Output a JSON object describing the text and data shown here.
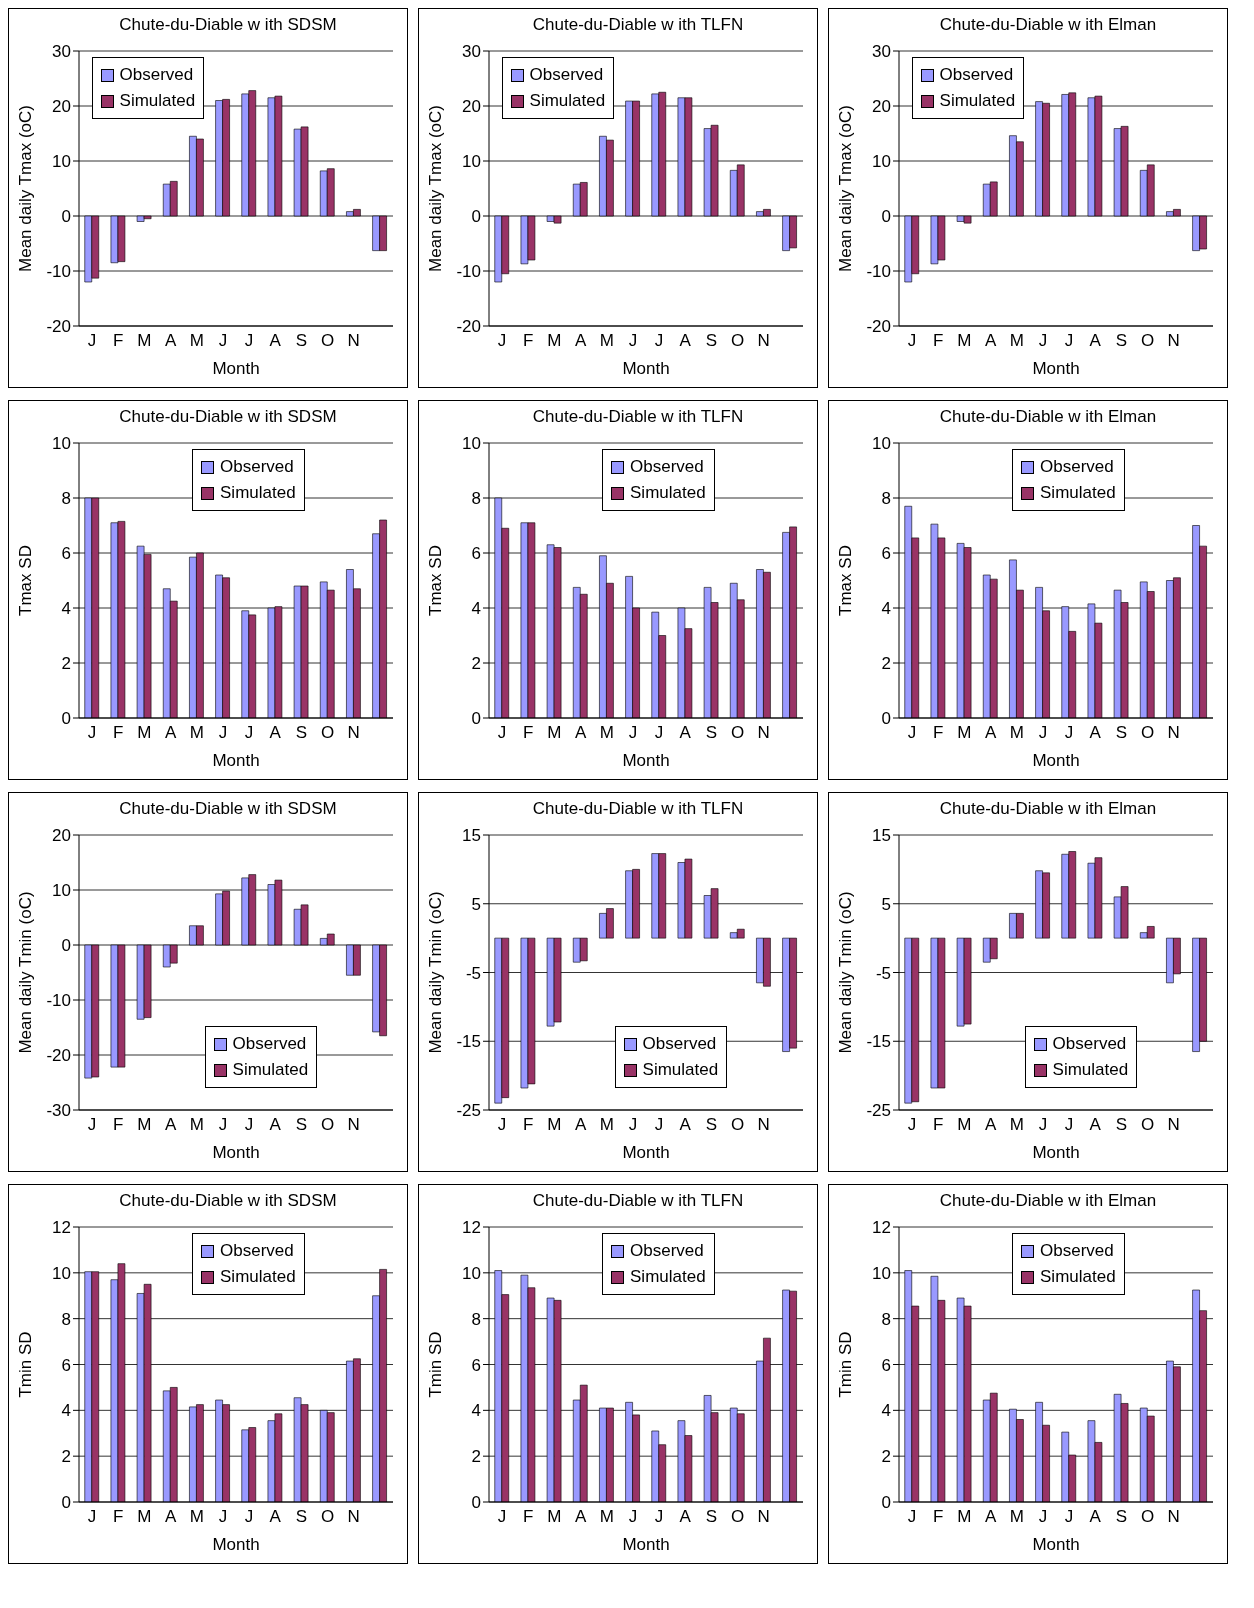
{
  "chart_data": [
    {
      "type": "bar",
      "title": "Chute-du-Diable w ith SDSM",
      "xlabel": "Month",
      "ylabel": "Mean daily Tmax (oC)",
      "categories": [
        "J",
        "F",
        "M",
        "A",
        "M",
        "J",
        "J",
        "A",
        "S",
        "O",
        "N",
        null
      ],
      "ylim": [
        -20,
        30
      ],
      "yticks": [
        -20,
        -10,
        0,
        10,
        20,
        30
      ],
      "grid": "y",
      "legend": "top left",
      "series": [
        {
          "name": "Observed",
          "color": "#9999ff",
          "values": [
            -12,
            -8.5,
            -1,
            5.8,
            14.5,
            21,
            22.2,
            21.5,
            15.8,
            8.2,
            0.8,
            -6.3
          ]
        },
        {
          "name": "Simulated",
          "color": "#993366",
          "values": [
            -11.3,
            -8.3,
            -0.5,
            6.3,
            14,
            21.2,
            22.8,
            21.8,
            16.2,
            8.6,
            1.2,
            -6.3
          ]
        }
      ]
    },
    {
      "type": "bar",
      "title": "Chute-du-Diable w ith TLFN",
      "xlabel": "Month",
      "ylabel": "Mean daily Tmax (oC)",
      "categories": [
        "J",
        "F",
        "M",
        "A",
        "M",
        "J",
        "J",
        "A",
        "S",
        "O",
        "N",
        null
      ],
      "ylim": [
        -20,
        30
      ],
      "yticks": [
        -20,
        -10,
        0,
        10,
        20,
        30
      ],
      "grid": "y",
      "legend": "top left",
      "series": [
        {
          "name": "Observed",
          "color": "#9999ff",
          "values": [
            -12,
            -8.7,
            -1,
            5.8,
            14.5,
            20.9,
            22.2,
            21.5,
            15.9,
            8.3,
            0.8,
            -6.3
          ]
        },
        {
          "name": "Simulated",
          "color": "#993366",
          "values": [
            -10.5,
            -8,
            -1.3,
            6.1,
            13.8,
            20.9,
            22.5,
            21.5,
            16.5,
            9.3,
            1.2,
            -5.8
          ]
        }
      ]
    },
    {
      "type": "bar",
      "title": "Chute-du-Diable w ith Elman",
      "xlabel": "Month",
      "ylabel": "Mean daily Tmax (oC)",
      "categories": [
        "J",
        "F",
        "M",
        "A",
        "M",
        "J",
        "J",
        "A",
        "S",
        "O",
        "N",
        null
      ],
      "ylim": [
        -20,
        30
      ],
      "yticks": [
        -20,
        -10,
        0,
        10,
        20,
        30
      ],
      "grid": "y",
      "legend": "top left",
      "series": [
        {
          "name": "Observed",
          "color": "#9999ff",
          "values": [
            -12,
            -8.7,
            -1,
            5.8,
            14.6,
            20.8,
            22.1,
            21.5,
            15.9,
            8.3,
            0.8,
            -6.3
          ]
        },
        {
          "name": "Simulated",
          "color": "#993366",
          "values": [
            -10.5,
            -8,
            -1.3,
            6.2,
            13.5,
            20.5,
            22.4,
            21.8,
            16.3,
            9.3,
            1.2,
            -6
          ]
        }
      ]
    },
    {
      "type": "bar",
      "title": "Chute-du-Diable w ith SDSM",
      "xlabel": "Month",
      "ylabel": "Tmax SD",
      "categories": [
        "J",
        "F",
        "M",
        "A",
        "M",
        "J",
        "J",
        "A",
        "S",
        "O",
        "N",
        null
      ],
      "ylim": [
        0,
        10
      ],
      "yticks": [
        0,
        2,
        4,
        6,
        8,
        10
      ],
      "grid": "y",
      "legend": "top",
      "series": [
        {
          "name": "Observed",
          "color": "#9999ff",
          "values": [
            8,
            7.1,
            6.25,
            4.7,
            5.85,
            5.2,
            3.9,
            4,
            4.8,
            4.95,
            5.4,
            6.7
          ]
        },
        {
          "name": "Simulated",
          "color": "#993366",
          "values": [
            8,
            7.15,
            5.95,
            4.25,
            6,
            5.1,
            3.75,
            4.05,
            4.8,
            4.65,
            4.7,
            7.2
          ]
        }
      ]
    },
    {
      "type": "bar",
      "title": "Chute-du-Diable w ith TLFN",
      "xlabel": "Month",
      "ylabel": "Tmax SD",
      "categories": [
        "J",
        "F",
        "M",
        "A",
        "M",
        "J",
        "J",
        "A",
        "S",
        "O",
        "N",
        null
      ],
      "ylim": [
        0,
        10
      ],
      "yticks": [
        0,
        2,
        4,
        6,
        8,
        10
      ],
      "grid": "y",
      "legend": "top",
      "series": [
        {
          "name": "Observed",
          "color": "#9999ff",
          "values": [
            8,
            7.1,
            6.3,
            4.75,
            5.9,
            5.15,
            3.85,
            4,
            4.75,
            4.9,
            5.4,
            6.75
          ]
        },
        {
          "name": "Simulated",
          "color": "#993366",
          "values": [
            6.9,
            7.1,
            6.2,
            4.5,
            4.9,
            4,
            3,
            3.25,
            4.2,
            4.3,
            5.3,
            6.95
          ]
        }
      ]
    },
    {
      "type": "bar",
      "title": "Chute-du-Diable w ith Elman",
      "xlabel": "Month",
      "ylabel": "Tmax SD",
      "categories": [
        "J",
        "F",
        "M",
        "A",
        "M",
        "J",
        "J",
        "A",
        "S",
        "O",
        "N",
        null
      ],
      "ylim": [
        0,
        10
      ],
      "yticks": [
        0,
        2,
        4,
        6,
        8,
        10
      ],
      "grid": "y",
      "legend": "top",
      "series": [
        {
          "name": "Observed",
          "color": "#9999ff",
          "values": [
            7.7,
            7.05,
            6.35,
            5.2,
            5.75,
            4.75,
            4.05,
            4.15,
            4.65,
            4.95,
            5,
            7
          ]
        },
        {
          "name": "Simulated",
          "color": "#993366",
          "values": [
            6.55,
            6.55,
            6.2,
            5.05,
            4.65,
            3.9,
            3.15,
            3.45,
            4.2,
            4.6,
            5.1,
            6.25
          ]
        }
      ]
    },
    {
      "type": "bar",
      "title": "Chute-du-Diable w ith SDSM",
      "xlabel": "Month",
      "ylabel": "Mean daily Tmin (oC)",
      "categories": [
        "J",
        "F",
        "M",
        "A",
        "M",
        "J",
        "J",
        "A",
        "S",
        "O",
        "N",
        null
      ],
      "ylim": [
        -30,
        20
      ],
      "yticks": [
        -30,
        -20,
        -10,
        0,
        10,
        20
      ],
      "grid": "y",
      "legend": "bottom",
      "series": [
        {
          "name": "Observed",
          "color": "#9999ff",
          "values": [
            -24.2,
            -22.2,
            -13.5,
            -4,
            3.5,
            9.3,
            12.2,
            11,
            6.5,
            1.2,
            -5.5,
            -15.8
          ]
        },
        {
          "name": "Simulated",
          "color": "#993366",
          "values": [
            -24,
            -22.2,
            -13.2,
            -3.3,
            3.5,
            9.8,
            12.8,
            11.8,
            7.3,
            2,
            -5.5,
            -16.5
          ]
        }
      ]
    },
    {
      "type": "bar",
      "title": "Chute-du-Diable w ith TLFN",
      "xlabel": "Month",
      "ylabel": "Mean daily Tmin (oC)",
      "categories": [
        "J",
        "F",
        "M",
        "A",
        "M",
        "J",
        "J",
        "A",
        "S",
        "O",
        "N",
        null
      ],
      "ylim": [
        -25,
        15
      ],
      "yticks": [
        -25,
        -15,
        -5,
        5,
        15
      ],
      "grid": "y",
      "legend": "bottom",
      "series": [
        {
          "name": "Observed",
          "color": "#9999ff",
          "values": [
            -24,
            -21.8,
            -12.8,
            -3.5,
            3.6,
            9.8,
            12.3,
            11,
            6.2,
            0.8,
            -6.5,
            -16.5
          ]
        },
        {
          "name": "Simulated",
          "color": "#993366",
          "values": [
            -23.2,
            -21.2,
            -12.2,
            -3.3,
            4.3,
            10,
            12.3,
            11.5,
            7.2,
            1.3,
            -7,
            -16
          ]
        }
      ]
    },
    {
      "type": "bar",
      "title": "Chute-du-Diable w ith Elman",
      "xlabel": "Month",
      "ylabel": "Mean daily Tmin (oC)",
      "categories": [
        "J",
        "F",
        "M",
        "A",
        "M",
        "J",
        "J",
        "A",
        "S",
        "O",
        "N",
        null
      ],
      "ylim": [
        -25,
        15
      ],
      "yticks": [
        -25,
        -15,
        -5,
        5,
        15
      ],
      "grid": "y",
      "legend": "bottom",
      "series": [
        {
          "name": "Observed",
          "color": "#9999ff",
          "values": [
            -24,
            -21.8,
            -12.8,
            -3.5,
            3.6,
            9.8,
            12.2,
            10.9,
            6,
            0.8,
            -6.5,
            -16.5
          ]
        },
        {
          "name": "Simulated",
          "color": "#993366",
          "values": [
            -23.8,
            -21.8,
            -12.5,
            -3,
            3.6,
            9.5,
            12.6,
            11.7,
            7.5,
            1.7,
            -5.2,
            -15
          ]
        }
      ]
    },
    {
      "type": "bar",
      "title": "Chute-du-Diable w ith SDSM",
      "xlabel": "Month",
      "ylabel": "Tmin SD",
      "categories": [
        "J",
        "F",
        "M",
        "A",
        "M",
        "J",
        "J",
        "A",
        "S",
        "O",
        "N",
        null
      ],
      "ylim": [
        0,
        12
      ],
      "yticks": [
        0,
        2,
        4,
        6,
        8,
        10,
        12
      ],
      "grid": "y",
      "legend": "top",
      "series": [
        {
          "name": "Observed",
          "color": "#9999ff",
          "values": [
            10.05,
            9.7,
            9.1,
            4.85,
            4.15,
            4.45,
            3.15,
            3.55,
            4.55,
            4,
            6.15,
            9
          ]
        },
        {
          "name": "Simulated",
          "color": "#993366",
          "values": [
            10.05,
            10.4,
            9.5,
            5,
            4.25,
            4.25,
            3.25,
            3.85,
            4.25,
            3.9,
            6.25,
            10.15
          ]
        }
      ]
    },
    {
      "type": "bar",
      "title": "Chute-du-Diable w ith TLFN",
      "xlabel": "Month",
      "ylabel": "Tmin SD",
      "categories": [
        "J",
        "F",
        "M",
        "A",
        "M",
        "J",
        "J",
        "A",
        "S",
        "O",
        "N",
        null
      ],
      "ylim": [
        0,
        12
      ],
      "yticks": [
        0,
        2,
        4,
        6,
        8,
        10,
        12
      ],
      "grid": "y",
      "legend": "top",
      "series": [
        {
          "name": "Observed",
          "color": "#9999ff",
          "values": [
            10.1,
            9.9,
            8.9,
            4.45,
            4.1,
            4.35,
            3.1,
            3.55,
            4.65,
            4.1,
            6.15,
            9.25
          ]
        },
        {
          "name": "Simulated",
          "color": "#993366",
          "values": [
            9.05,
            9.35,
            8.8,
            5.1,
            4.1,
            3.8,
            2.5,
            2.9,
            3.9,
            3.85,
            7.15,
            9.2
          ]
        }
      ]
    },
    {
      "type": "bar",
      "title": "Chute-du-Diable w ith Elman",
      "xlabel": "Month",
      "ylabel": "Tmin SD",
      "categories": [
        "J",
        "F",
        "M",
        "A",
        "M",
        "J",
        "J",
        "A",
        "S",
        "O",
        "N",
        null
      ],
      "ylim": [
        0,
        12
      ],
      "yticks": [
        0,
        2,
        4,
        6,
        8,
        10,
        12
      ],
      "grid": "y",
      "legend": "top",
      "series": [
        {
          "name": "Observed",
          "color": "#9999ff",
          "values": [
            10.1,
            9.85,
            8.9,
            4.45,
            4.05,
            4.35,
            3.05,
            3.55,
            4.7,
            4.1,
            6.15,
            9.25
          ]
        },
        {
          "name": "Simulated",
          "color": "#993366",
          "values": [
            8.55,
            8.8,
            8.55,
            4.75,
            3.6,
            3.35,
            2.05,
            2.6,
            4.3,
            3.75,
            5.9,
            8.35
          ]
        }
      ]
    }
  ]
}
